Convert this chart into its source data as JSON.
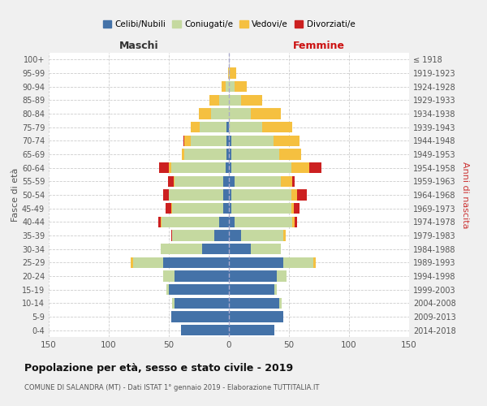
{
  "age_groups": [
    "0-4",
    "5-9",
    "10-14",
    "15-19",
    "20-24",
    "25-29",
    "30-34",
    "35-39",
    "40-44",
    "45-49",
    "50-54",
    "55-59",
    "60-64",
    "65-69",
    "70-74",
    "75-79",
    "80-84",
    "85-89",
    "90-94",
    "95-99",
    "100+"
  ],
  "birth_years": [
    "2014-2018",
    "2009-2013",
    "2004-2008",
    "1999-2003",
    "1994-1998",
    "1989-1993",
    "1984-1988",
    "1979-1983",
    "1974-1978",
    "1969-1973",
    "1964-1968",
    "1959-1963",
    "1954-1958",
    "1949-1953",
    "1944-1948",
    "1939-1943",
    "1934-1938",
    "1929-1933",
    "1924-1928",
    "1919-1923",
    "≤ 1918"
  ],
  "male_celibi": [
    40,
    48,
    45,
    50,
    45,
    55,
    22,
    12,
    8,
    5,
    5,
    5,
    3,
    2,
    2,
    2,
    0,
    0,
    0,
    0,
    0
  ],
  "male_coniugati": [
    0,
    0,
    2,
    2,
    10,
    25,
    35,
    35,
    48,
    42,
    45,
    40,
    45,
    35,
    30,
    22,
    15,
    8,
    3,
    0,
    0
  ],
  "male_vedovi": [
    0,
    0,
    0,
    0,
    0,
    2,
    0,
    0,
    1,
    1,
    0,
    1,
    2,
    2,
    5,
    8,
    10,
    8,
    3,
    1,
    0
  ],
  "male_divorziati": [
    0,
    0,
    0,
    0,
    0,
    0,
    0,
    1,
    2,
    5,
    5,
    5,
    8,
    0,
    1,
    0,
    0,
    0,
    0,
    0,
    0
  ],
  "fem_nubili": [
    38,
    45,
    42,
    38,
    40,
    45,
    18,
    10,
    5,
    2,
    2,
    5,
    2,
    2,
    2,
    0,
    0,
    0,
    0,
    0,
    0
  ],
  "fem_coniugate": [
    0,
    0,
    2,
    2,
    8,
    25,
    25,
    35,
    48,
    50,
    50,
    38,
    50,
    40,
    35,
    28,
    18,
    10,
    5,
    1,
    0
  ],
  "fem_vedove": [
    0,
    0,
    0,
    0,
    0,
    2,
    0,
    2,
    2,
    2,
    5,
    10,
    15,
    18,
    22,
    25,
    25,
    18,
    10,
    5,
    0
  ],
  "fem_divorziate": [
    0,
    0,
    0,
    0,
    0,
    0,
    0,
    0,
    2,
    5,
    8,
    2,
    10,
    0,
    0,
    0,
    0,
    0,
    0,
    0,
    0
  ],
  "colors": {
    "celibi": "#4472a8",
    "coniugati": "#c5d9a0",
    "vedovi": "#f5c040",
    "divorziati": "#cc2020"
  },
  "legend_labels": [
    "Celibi/Nubili",
    "Coniugati/e",
    "Vedovi/e",
    "Divorziati/e"
  ],
  "title": "Popolazione per età, sesso e stato civile - 2019",
  "subtitle": "COMUNE DI SALANDRA (MT) - Dati ISTAT 1° gennaio 2019 - Elaborazione TUTTITALIA.IT",
  "label_maschi": "Maschi",
  "label_femmine": "Femmine",
  "ylabel_left": "Fasce di età",
  "ylabel_right": "Anni di nascita",
  "xlim": 150,
  "bg_color": "#f0f0f0",
  "plot_bg": "#ffffff"
}
